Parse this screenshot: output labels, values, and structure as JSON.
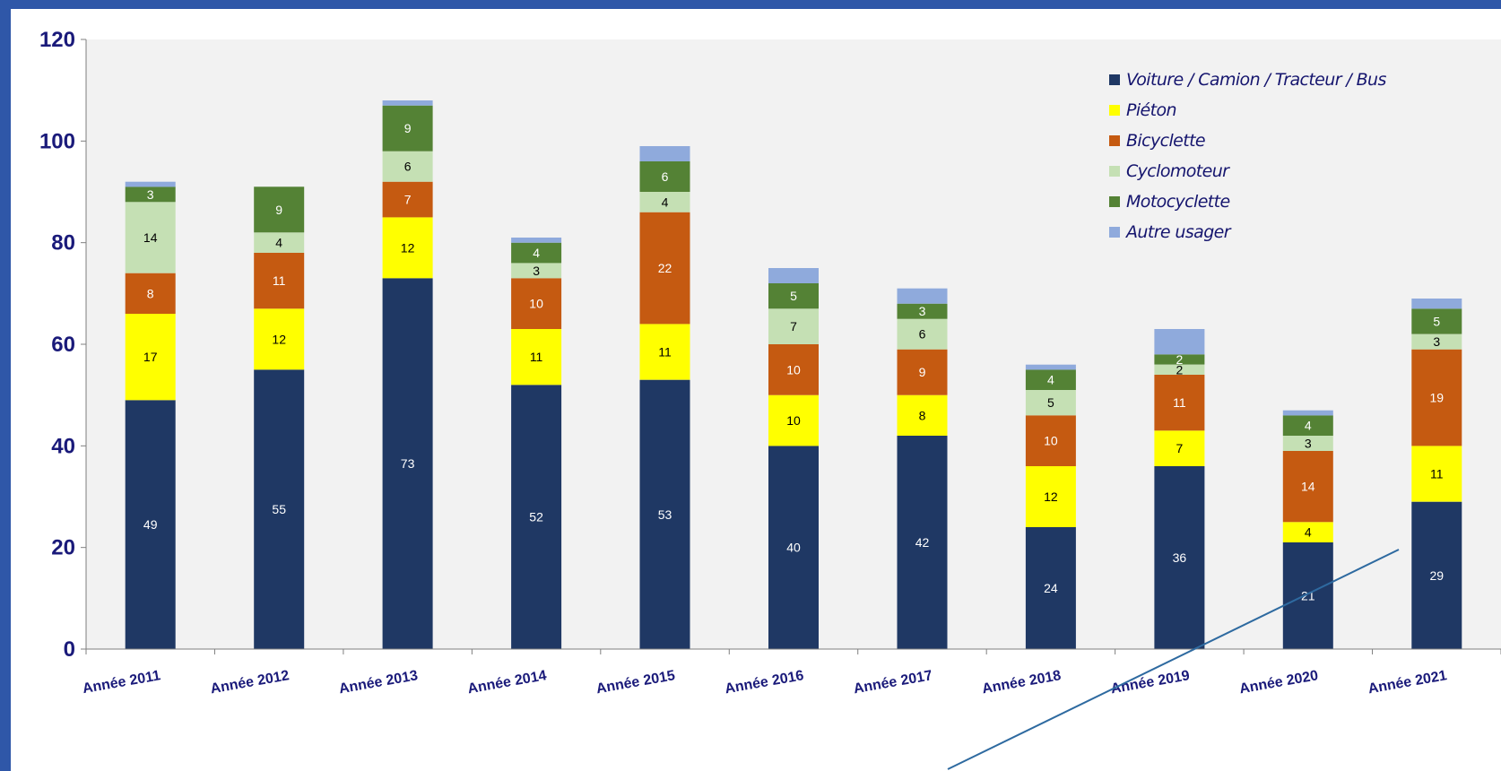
{
  "chart_data": {
    "type": "bar",
    "stacked": true,
    "categories": [
      "Année 2011",
      "Année 2012",
      "Année 2013",
      "Année 2014",
      "Année 2015",
      "Année 2016",
      "Année 2017",
      "Année 2018",
      "Année 2019",
      "Année 2020",
      "Année 2021"
    ],
    "series": [
      {
        "name": "Voiture / Camion / Tracteur / Bus",
        "color": "#1f3864",
        "values": [
          49,
          55,
          73,
          52,
          53,
          40,
          42,
          24,
          36,
          21,
          29
        ]
      },
      {
        "name": "Piéton",
        "color": "#ffff00",
        "values": [
          17,
          12,
          12,
          11,
          11,
          10,
          8,
          12,
          7,
          4,
          11
        ]
      },
      {
        "name": "Bicyclette",
        "color": "#c55a11",
        "values": [
          8,
          11,
          7,
          10,
          22,
          10,
          9,
          10,
          11,
          14,
          19
        ]
      },
      {
        "name": "Cyclomoteur",
        "color": "#c5e0b4",
        "values": [
          14,
          4,
          6,
          3,
          4,
          7,
          6,
          5,
          2,
          3,
          3
        ]
      },
      {
        "name": "Motocyclette",
        "color": "#548235",
        "values": [
          3,
          9,
          9,
          4,
          6,
          5,
          3,
          4,
          2,
          4,
          5
        ]
      },
      {
        "name": "Autre usager",
        "color": "#8faadc",
        "values": [
          1,
          0,
          1,
          1,
          3,
          3,
          3,
          1,
          5,
          1,
          2
        ]
      }
    ],
    "value_labels_visible": [
      [
        true,
        true,
        true,
        true,
        true,
        true,
        true,
        true,
        true,
        true,
        true
      ],
      [
        true,
        true,
        true,
        true,
        true,
        true,
        true,
        true,
        true,
        true,
        true
      ],
      [
        true,
        true,
        true,
        true,
        true,
        true,
        true,
        true,
        true,
        true,
        true
      ],
      [
        true,
        true,
        true,
        true,
        true,
        true,
        true,
        true,
        true,
        true,
        true
      ],
      [
        true,
        true,
        true,
        true,
        true,
        true,
        true,
        true,
        true,
        true,
        true
      ],
      [
        false,
        false,
        false,
        false,
        false,
        false,
        false,
        false,
        false,
        false,
        false
      ]
    ],
    "ylim": [
      0,
      120
    ],
    "yticks": [
      0,
      20,
      40,
      60,
      80,
      100,
      120
    ],
    "grid": false,
    "legend_position": "top-right",
    "plot_background": "#f2f2f2",
    "axis_text_color": "#1a1a7a"
  }
}
